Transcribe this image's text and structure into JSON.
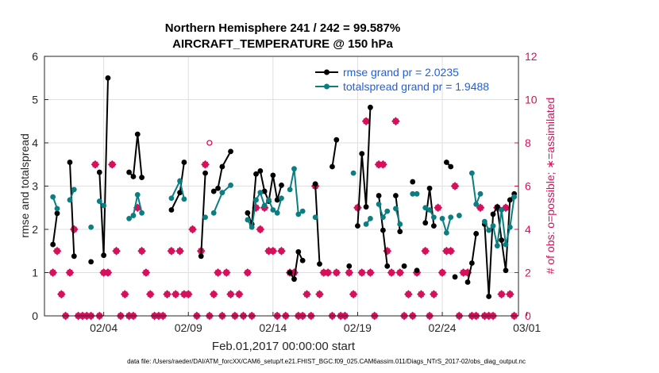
{
  "chart_data": {
    "type": "line",
    "title_line1": "Northern Hemisphere 241  / 242 = 99.587%",
    "title_line2": "AIRCRAFT_TEMPERATURE @ 150 hPa",
    "xlabel": "Feb.01,2017 00:00:00 start",
    "ylabel_left": "rmse and totalspread",
    "ylabel_right": "# of obs: o=possible; ∗=assimilated",
    "footnote": "data file: /Users/raeder/DAI/ATM_forcXX/CAM6_setup/f.e21.FHIST_BGC.f09_025.CAM6assim.011/Diags_NTrS_2017-02/obs_diag_output.nc",
    "xlim": [
      0.5,
      28.5
    ],
    "ylim_left": [
      0,
      6
    ],
    "ylim_right": [
      0,
      12
    ],
    "x_ticks": [
      4,
      9,
      14,
      19,
      24,
      29
    ],
    "x_tick_labels": [
      "02/04",
      "02/09",
      "02/14",
      "02/19",
      "02/24",
      "03/01"
    ],
    "y_ticks_left": [
      0,
      1,
      2,
      3,
      4,
      5,
      6
    ],
    "y_ticks_right": [
      0,
      2,
      4,
      6,
      8,
      10,
      12
    ],
    "colors": {
      "rmse": "#000000",
      "spread": "#0a7e80",
      "obs": "#d6105b",
      "legend_text": "#1f5fe0"
    },
    "series": [
      {
        "name": "rmse grand pr = 2.0235",
        "color": "#000000",
        "points": [
          [
            1.0,
            1.65
          ],
          [
            1.25,
            2.37
          ],
          null,
          [
            2.0,
            3.55
          ],
          [
            2.25,
            1.38
          ],
          null,
          [
            3.25,
            1.25
          ],
          null,
          [
            3.75,
            3.32
          ],
          [
            4.0,
            1.4
          ],
          [
            4.25,
            5.5
          ],
          null,
          [
            5.5,
            3.32
          ],
          [
            5.75,
            3.22
          ],
          [
            6.0,
            4.2
          ],
          [
            6.25,
            3.2
          ],
          null,
          [
            8.0,
            2.45
          ],
          [
            8.5,
            2.85
          ],
          [
            8.75,
            3.55
          ],
          null,
          [
            9.75,
            1.38
          ],
          [
            10.0,
            3.3
          ],
          null,
          [
            10.5,
            2.88
          ],
          [
            10.75,
            2.95
          ],
          [
            11.0,
            3.45
          ],
          [
            11.5,
            3.8
          ],
          null,
          [
            12.5,
            2.38
          ],
          [
            12.75,
            2.12
          ],
          [
            13.0,
            3.28
          ],
          [
            13.25,
            3.35
          ],
          [
            13.5,
            2.88
          ],
          [
            13.75,
            2.65
          ],
          [
            14.0,
            3.25
          ],
          [
            14.25,
            2.68
          ],
          [
            14.5,
            3.02
          ],
          null,
          [
            15.0,
            1.0
          ],
          [
            15.25,
            0.85
          ],
          [
            15.5,
            1.48
          ],
          [
            15.75,
            1.28
          ],
          null,
          [
            16.5,
            3.05
          ],
          [
            16.75,
            1.2
          ],
          null,
          [
            17.5,
            3.45
          ],
          [
            17.75,
            4.07
          ],
          null,
          [
            18.5,
            1.15
          ],
          null,
          [
            19.0,
            2.08
          ],
          [
            19.25,
            3.75
          ],
          [
            19.5,
            2.52
          ],
          [
            19.75,
            4.82
          ],
          null,
          [
            20.25,
            2.78
          ],
          [
            20.5,
            1.98
          ],
          [
            20.75,
            1.15
          ],
          null,
          [
            21.25,
            2.78
          ],
          [
            21.5,
            1.95
          ],
          null,
          [
            21.75,
            1.15
          ],
          null,
          [
            22.25,
            3.1
          ],
          null,
          [
            22.5,
            1.05
          ],
          null,
          [
            23.0,
            2.15
          ],
          [
            23.25,
            2.95
          ],
          [
            23.5,
            2.08
          ],
          null,
          [
            24.25,
            3.55
          ],
          [
            24.5,
            3.45
          ],
          null,
          [
            24.75,
            0.9
          ],
          null,
          [
            25.5,
            0.78
          ],
          [
            25.75,
            1.22
          ],
          [
            26.0,
            1.9
          ],
          null,
          [
            26.5,
            2.12
          ],
          [
            26.75,
            0.45
          ],
          [
            27.0,
            2.35
          ],
          [
            27.25,
            2.52
          ],
          [
            27.5,
            1.75
          ],
          [
            27.75,
            1.05
          ],
          [
            28.0,
            2.68
          ],
          [
            28.25,
            2.82
          ]
        ]
      },
      {
        "name": "totalspread grand pr = 1.9488",
        "color": "#0a7e80",
        "points": [
          [
            1.0,
            2.75
          ],
          [
            1.25,
            2.48
          ],
          null,
          [
            2.0,
            2.68
          ],
          [
            2.25,
            2.92
          ],
          null,
          [
            3.25,
            2.05
          ],
          null,
          [
            3.75,
            2.65
          ],
          [
            4.0,
            2.55
          ],
          null,
          [
            5.5,
            2.25
          ],
          [
            5.75,
            2.32
          ],
          [
            6.0,
            2.8
          ],
          [
            6.25,
            2.38
          ],
          null,
          [
            8.0,
            2.72
          ],
          [
            8.5,
            3.12
          ],
          [
            8.75,
            2.7
          ],
          null,
          [
            10.0,
            2.28
          ],
          null,
          [
            10.5,
            2.38
          ],
          [
            11.0,
            2.85
          ],
          [
            11.5,
            3.02
          ],
          null,
          [
            12.5,
            2.22
          ],
          [
            12.75,
            2.05
          ],
          [
            13.0,
            2.68
          ],
          [
            13.25,
            2.85
          ],
          [
            13.5,
            2.55
          ],
          [
            13.75,
            2.68
          ],
          [
            14.0,
            2.45
          ],
          [
            14.25,
            2.38
          ],
          [
            14.5,
            2.72
          ],
          null,
          [
            15.0,
            2.92
          ],
          [
            15.25,
            3.4
          ],
          [
            15.5,
            2.35
          ],
          [
            15.75,
            2.42
          ],
          null,
          [
            16.5,
            2.28
          ],
          null,
          [
            18.75,
            3.3
          ],
          null,
          [
            19.5,
            2.12
          ],
          [
            19.75,
            2.25
          ],
          null,
          [
            20.25,
            2.58
          ],
          [
            20.5,
            2.28
          ],
          [
            20.75,
            2.42
          ],
          null,
          [
            21.25,
            2.48
          ],
          [
            21.5,
            2.12
          ],
          null,
          [
            22.25,
            2.82
          ],
          null,
          [
            22.5,
            2.82
          ],
          null,
          [
            23.0,
            2.5
          ],
          [
            23.25,
            2.45
          ],
          [
            23.5,
            2.28
          ],
          null,
          [
            24.0,
            2.25
          ],
          [
            24.25,
            1.92
          ],
          [
            24.5,
            2.28
          ],
          null,
          [
            25.0,
            2.32
          ],
          null,
          [
            25.75,
            3.3
          ],
          [
            26.0,
            2.58
          ],
          [
            26.25,
            2.82
          ],
          null,
          [
            26.5,
            2.18
          ],
          [
            26.75,
            1.98
          ],
          [
            27.0,
            2.08
          ],
          [
            27.25,
            1.62
          ],
          [
            27.5,
            2.45
          ],
          [
            27.75,
            1.65
          ],
          [
            28.0,
            2.05
          ],
          [
            28.25,
            2.75
          ]
        ]
      }
    ],
    "obs_assimilated": [
      [
        1.0,
        2
      ],
      [
        1.25,
        3
      ],
      [
        1.5,
        1
      ],
      [
        1.75,
        0
      ],
      [
        2.0,
        2
      ],
      [
        2.25,
        4
      ],
      [
        2.5,
        0
      ],
      [
        2.75,
        0
      ],
      [
        3.0,
        0
      ],
      [
        3.25,
        0
      ],
      [
        3.5,
        7
      ],
      [
        3.75,
        0
      ],
      [
        4.0,
        2
      ],
      [
        4.25,
        2
      ],
      [
        4.5,
        7
      ],
      [
        4.75,
        3
      ],
      [
        5.0,
        0
      ],
      [
        5.25,
        1
      ],
      [
        5.5,
        0
      ],
      [
        5.75,
        0
      ],
      [
        6.0,
        5
      ],
      [
        6.25,
        3
      ],
      [
        6.5,
        2
      ],
      [
        6.75,
        1
      ],
      [
        7.0,
        0
      ],
      [
        7.25,
        0
      ],
      [
        7.5,
        0
      ],
      [
        7.75,
        1
      ],
      [
        8.0,
        3
      ],
      [
        8.25,
        1
      ],
      [
        8.5,
        3
      ],
      [
        8.75,
        1
      ],
      [
        9.0,
        1
      ],
      [
        9.25,
        4
      ],
      [
        9.5,
        0
      ],
      [
        9.75,
        3
      ],
      [
        10.0,
        7
      ],
      [
        10.25,
        0
      ],
      [
        10.5,
        1
      ],
      [
        10.75,
        2
      ],
      [
        11.0,
        0
      ],
      [
        11.25,
        2
      ],
      [
        11.5,
        1
      ],
      [
        11.75,
        0
      ],
      [
        12.0,
        1
      ],
      [
        12.25,
        0
      ],
      [
        12.5,
        2
      ],
      [
        12.75,
        0
      ],
      [
        13.0,
        5
      ],
      [
        13.25,
        4
      ],
      [
        13.5,
        5
      ],
      [
        13.75,
        3
      ],
      [
        14.0,
        3
      ],
      [
        14.25,
        0
      ],
      [
        14.5,
        3
      ],
      [
        14.75,
        0
      ],
      [
        15.0,
        2
      ],
      [
        15.25,
        2
      ],
      [
        15.5,
        0
      ],
      [
        15.75,
        0
      ],
      [
        16.0,
        1
      ],
      [
        16.25,
        0
      ],
      [
        16.5,
        6
      ],
      [
        16.75,
        1
      ],
      [
        17.0,
        2
      ],
      [
        17.25,
        2
      ],
      [
        17.5,
        0
      ],
      [
        17.75,
        2
      ],
      [
        18.0,
        0
      ],
      [
        18.25,
        0
      ],
      [
        18.5,
        2
      ],
      [
        18.75,
        1
      ],
      [
        19.0,
        5
      ],
      [
        19.25,
        2
      ],
      [
        19.5,
        9
      ],
      [
        19.75,
        2
      ],
      [
        20.0,
        0
      ],
      [
        20.25,
        7
      ],
      [
        20.5,
        7
      ],
      [
        20.75,
        3
      ],
      [
        21.0,
        2
      ],
      [
        21.25,
        9
      ],
      [
        21.5,
        2
      ],
      [
        21.75,
        0
      ],
      [
        22.0,
        1
      ],
      [
        22.25,
        0
      ],
      [
        22.5,
        2
      ],
      [
        22.75,
        1
      ],
      [
        23.0,
        3
      ],
      [
        23.25,
        0
      ],
      [
        23.5,
        1
      ],
      [
        23.75,
        5
      ],
      [
        24.0,
        2
      ],
      [
        24.25,
        3
      ],
      [
        24.5,
        3
      ],
      [
        24.75,
        6
      ],
      [
        25.0,
        0
      ],
      [
        25.25,
        2
      ],
      [
        25.5,
        2
      ],
      [
        25.75,
        0
      ],
      [
        26.0,
        0
      ],
      [
        26.25,
        5
      ],
      [
        26.5,
        0
      ],
      [
        26.75,
        0
      ],
      [
        27.0,
        0
      ],
      [
        27.25,
        5
      ],
      [
        27.5,
        1
      ],
      [
        27.75,
        5
      ],
      [
        28.0,
        1
      ],
      [
        28.25,
        0
      ]
    ],
    "obs_possible": [
      [
        10.25,
        8
      ]
    ]
  }
}
